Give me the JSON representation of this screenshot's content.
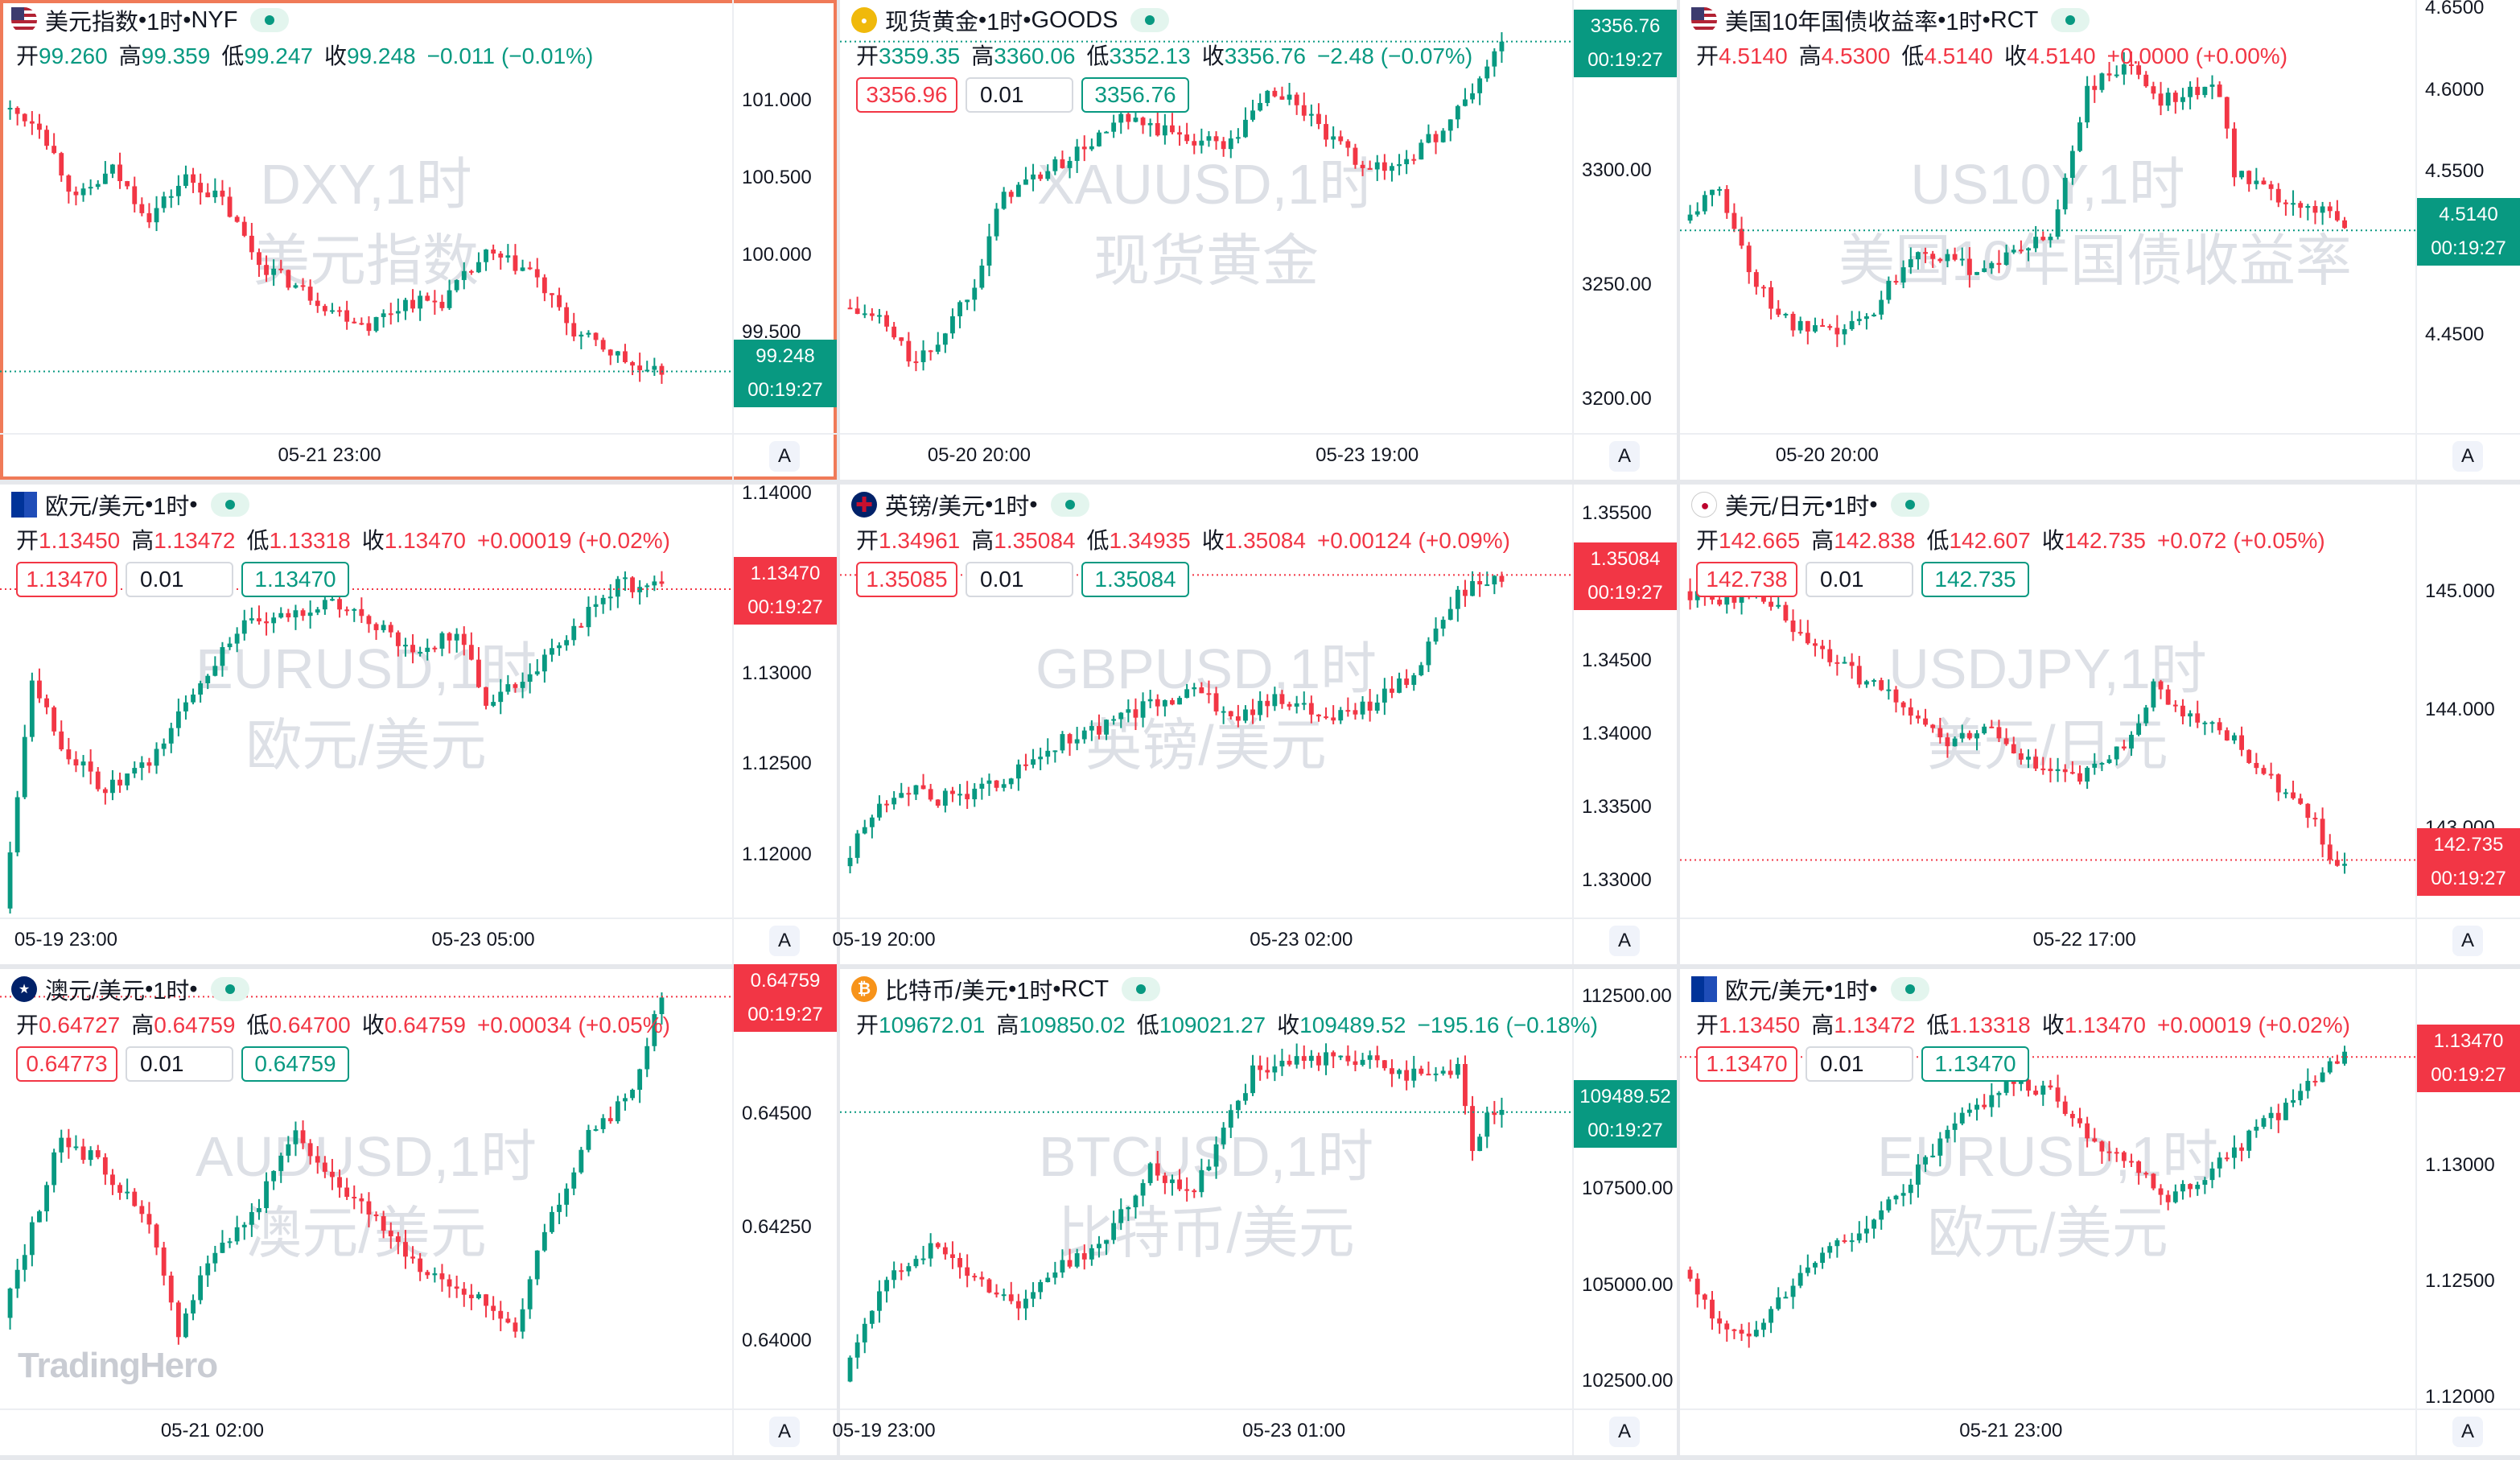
{
  "colors": {
    "up": "#089981",
    "down": "#f23645",
    "accent": "#f07a58"
  },
  "branding": {
    "text": "TradingHero"
  },
  "charts": [
    {
      "name": "美元指数",
      "tf": "1时",
      "source": "NYF",
      "flag": "us",
      "active": true,
      "o": "99.260",
      "h": "99.359",
      "l": "99.247",
      "c": "99.248",
      "chg": "−0.011",
      "pct": "(−0.01%)",
      "dir": "down",
      "trade": null,
      "wm1": "DXY,1时",
      "wm2": "美元指数",
      "yticks": [
        {
          "l": "101.000",
          "v": 101
        },
        {
          "l": "100.500",
          "v": 100.5
        },
        {
          "l": "100.000",
          "v": 100
        },
        {
          "l": "99.500",
          "v": 99.5
        }
      ],
      "ylim": [
        98.85,
        101.65
      ],
      "price_label": "99.248",
      "price": 99.248,
      "countdown": "00:19:27",
      "price_color": "#089981",
      "xticks": [
        {
          "l": "05-21 23:00",
          "f": 0.45
        }
      ],
      "axis_btn": "A",
      "path": [
        [
          0,
          100.95
        ],
        [
          0.05,
          100.85
        ],
        [
          0.1,
          100.35
        ],
        [
          0.15,
          100.55
        ],
        [
          0.2,
          100.25
        ],
        [
          0.25,
          100.5
        ],
        [
          0.3,
          100.35
        ],
        [
          0.35,
          99.95
        ],
        [
          0.4,
          99.8
        ],
        [
          0.45,
          99.65
        ],
        [
          0.5,
          99.55
        ],
        [
          0.55,
          99.7
        ],
        [
          0.6,
          99.7
        ],
        [
          0.66,
          100.0
        ],
        [
          0.72,
          99.9
        ],
        [
          0.78,
          99.5
        ],
        [
          0.84,
          99.35
        ],
        [
          0.88,
          99.22
        ],
        [
          0.9,
          99.25
        ]
      ]
    },
    {
      "name": "现货黄金",
      "tf": "1时",
      "source": "GOODS",
      "flag": "gold",
      "active": false,
      "o": "3359.35",
      "h": "3360.06",
      "l": "3352.13",
      "c": "3356.76",
      "chg": "−2.48",
      "pct": "(−0.07%)",
      "dir": "down",
      "trade": {
        "sell": "3356.96",
        "qty": "0.01",
        "buy": "3356.76"
      },
      "wm1": "XAUUSD,1时",
      "wm2": "现货黄金",
      "yticks": [
        {
          "l": "3300.00",
          "v": 3300
        },
        {
          "l": "3250.00",
          "v": 3250
        },
        {
          "l": "3200.00",
          "v": 3200
        }
      ],
      "ylim": [
        3185,
        3375
      ],
      "price_label": "3356.76",
      "price": 3356.76,
      "countdown": "00:19:27",
      "price_color": "#089981",
      "xticks": [
        {
          "l": "05-20 20:00",
          "f": 0.19
        },
        {
          "l": "05-23 19:00",
          "f": 0.72
        }
      ],
      "axis_btn": "A",
      "path": [
        [
          0,
          3240
        ],
        [
          0.05,
          3235
        ],
        [
          0.1,
          3215
        ],
        [
          0.13,
          3225
        ],
        [
          0.18,
          3252
        ],
        [
          0.22,
          3290
        ],
        [
          0.28,
          3300
        ],
        [
          0.33,
          3310
        ],
        [
          0.38,
          3322
        ],
        [
          0.43,
          3318
        ],
        [
          0.48,
          3314
        ],
        [
          0.53,
          3312
        ],
        [
          0.58,
          3335
        ],
        [
          0.62,
          3330
        ],
        [
          0.66,
          3315
        ],
        [
          0.7,
          3305
        ],
        [
          0.74,
          3300
        ],
        [
          0.78,
          3308
        ],
        [
          0.82,
          3318
        ],
        [
          0.86,
          3335
        ],
        [
          0.9,
          3357
        ]
      ]
    },
    {
      "name": "美国10年国债收益率",
      "tf": "1时",
      "source": "RCT",
      "flag": "us",
      "active": false,
      "o": "4.5140",
      "h": "4.5300",
      "l": "4.5140",
      "c": "4.5140",
      "chg": "+0.0000",
      "pct": "(+0.00%)",
      "dir": "up",
      "trade": null,
      "wm1": "US10Y,1时",
      "wm2": "美国10年国债收益率",
      "yticks": [
        {
          "l": "4.6500",
          "v": 4.65
        },
        {
          "l": "4.6000",
          "v": 4.6
        },
        {
          "l": "4.5500",
          "v": 4.55
        },
        {
          "l": "4.4500",
          "v": 4.45
        }
      ],
      "ylim": [
        4.39,
        4.655
      ],
      "price_label": "4.5140",
      "price": 4.514,
      "countdown": "00:19:27",
      "price_color": "#089981",
      "xticks": [
        {
          "l": "05-20 20:00",
          "f": 0.2
        }
      ],
      "axis_btn": "A",
      "path": [
        [
          0,
          4.52
        ],
        [
          0.05,
          4.54
        ],
        [
          0.1,
          4.48
        ],
        [
          0.15,
          4.455
        ],
        [
          0.2,
          4.45
        ],
        [
          0.25,
          4.46
        ],
        [
          0.28,
          4.48
        ],
        [
          0.32,
          4.505
        ],
        [
          0.36,
          4.495
        ],
        [
          0.4,
          4.49
        ],
        [
          0.45,
          4.5
        ],
        [
          0.5,
          4.51
        ],
        [
          0.55,
          4.6
        ],
        [
          0.6,
          4.615
        ],
        [
          0.65,
          4.595
        ],
        [
          0.7,
          4.6
        ],
        [
          0.73,
          4.6
        ],
        [
          0.75,
          4.55
        ],
        [
          0.8,
          4.535
        ],
        [
          0.84,
          4.525
        ],
        [
          0.88,
          4.53
        ],
        [
          0.9,
          4.514
        ]
      ]
    },
    {
      "name": "欧元/美元",
      "tf": "1时",
      "source": "",
      "flag": "eu",
      "active": false,
      "o": "1.13450",
      "h": "1.13472",
      "l": "1.13318",
      "c": "1.13470",
      "chg": "+0.00019",
      "pct": "(+0.02%)",
      "dir": "up",
      "trade": {
        "sell": "1.13470",
        "qty": "0.01",
        "buy": "1.13470"
      },
      "wm1": "EURUSD,1时",
      "wm2": "欧元/美元",
      "yticks": [
        {
          "l": "1.14000",
          "v": 1.14
        },
        {
          "l": "1.13000",
          "v": 1.13
        },
        {
          "l": "1.12500",
          "v": 1.125
        },
        {
          "l": "1.12000",
          "v": 1.12
        }
      ],
      "ylim": [
        1.1165,
        1.1405
      ],
      "price_label": "1.13470",
      "price": 1.1347,
      "countdown": "00:19:27",
      "price_color": "#f23645",
      "xticks": [
        {
          "l": "05-19 23:00",
          "f": 0.09
        },
        {
          "l": "05-23 05:00",
          "f": 0.66
        }
      ],
      "axis_btn": "A",
      "path": [
        [
          0,
          1.117
        ],
        [
          0.04,
          1.13
        ],
        [
          0.08,
          1.126
        ],
        [
          0.14,
          1.1235
        ],
        [
          0.2,
          1.125
        ],
        [
          0.26,
          1.129
        ],
        [
          0.32,
          1.1325
        ],
        [
          0.38,
          1.133
        ],
        [
          0.44,
          1.134
        ],
        [
          0.5,
          1.133
        ],
        [
          0.56,
          1.131
        ],
        [
          0.62,
          1.1325
        ],
        [
          0.66,
          1.1285
        ],
        [
          0.72,
          1.13
        ],
        [
          0.78,
          1.1325
        ],
        [
          0.84,
          1.135
        ],
        [
          0.9,
          1.1347
        ]
      ]
    },
    {
      "name": "英镑/美元",
      "tf": "1时",
      "source": "",
      "flag": "uk",
      "active": false,
      "o": "1.34961",
      "h": "1.35084",
      "l": "1.34935",
      "c": "1.35084",
      "chg": "+0.00124",
      "pct": "(+0.09%)",
      "dir": "up",
      "trade": {
        "sell": "1.35085",
        "qty": "0.01",
        "buy": "1.35084"
      },
      "wm1": "GBPUSD,1时",
      "wm2": "英镑/美元",
      "yticks": [
        {
          "l": "1.35500",
          "v": 1.355
        },
        {
          "l": "1.34500",
          "v": 1.345
        },
        {
          "l": "1.34000",
          "v": 1.34
        },
        {
          "l": "1.33500",
          "v": 1.335
        },
        {
          "l": "1.33000",
          "v": 1.33
        }
      ],
      "ylim": [
        1.3275,
        1.357
      ],
      "price_label": "1.35084",
      "price": 1.35084,
      "countdown": "00:19:27",
      "price_color": "#f23645",
      "xticks": [
        {
          "l": "05-19 20:00",
          "f": 0.06
        },
        {
          "l": "05-23 02:00",
          "f": 0.63
        }
      ],
      "axis_btn": "A",
      "path": [
        [
          0,
          1.331
        ],
        [
          0.04,
          1.3345
        ],
        [
          0.08,
          1.3365
        ],
        [
          0.12,
          1.3355
        ],
        [
          0.18,
          1.336
        ],
        [
          0.24,
          1.3375
        ],
        [
          0.3,
          1.3395
        ],
        [
          0.36,
          1.3405
        ],
        [
          0.42,
          1.342
        ],
        [
          0.48,
          1.343
        ],
        [
          0.54,
          1.341
        ],
        [
          0.6,
          1.3425
        ],
        [
          0.66,
          1.341
        ],
        [
          0.72,
          1.342
        ],
        [
          0.78,
          1.344
        ],
        [
          0.84,
          1.3495
        ],
        [
          0.88,
          1.3505
        ],
        [
          0.9,
          1.35084
        ]
      ]
    },
    {
      "name": "美元/日元",
      "tf": "1时",
      "source": "",
      "flag": "jp",
      "active": false,
      "o": "142.665",
      "h": "142.838",
      "l": "142.607",
      "c": "142.735",
      "chg": "+0.072",
      "pct": "(+0.05%)",
      "dir": "up",
      "trade": {
        "sell": "142.738",
        "qty": "0.01",
        "buy": "142.735"
      },
      "wm1": "USDJPY,1时",
      "wm2": "美元/日元",
      "yticks": [
        {
          "l": "145.000",
          "v": 145
        },
        {
          "l": "144.000",
          "v": 144
        },
        {
          "l": "143.000",
          "v": 143
        }
      ],
      "ylim": [
        142.25,
        145.9
      ],
      "price_label": "142.735",
      "price": 142.735,
      "countdown": "00:19:27",
      "price_color": "#f23645",
      "xticks": [
        {
          "l": "05-22 17:00",
          "f": 0.55
        }
      ],
      "axis_btn": "A",
      "path": [
        [
          0,
          145.0
        ],
        [
          0.05,
          144.9
        ],
        [
          0.1,
          145.05
        ],
        [
          0.16,
          144.6
        ],
        [
          0.22,
          144.35
        ],
        [
          0.3,
          144.05
        ],
        [
          0.36,
          143.7
        ],
        [
          0.42,
          143.85
        ],
        [
          0.48,
          143.5
        ],
        [
          0.54,
          143.4
        ],
        [
          0.6,
          143.7
        ],
        [
          0.64,
          144.2
        ],
        [
          0.68,
          144.0
        ],
        [
          0.74,
          143.8
        ],
        [
          0.8,
          143.4
        ],
        [
          0.86,
          143.05
        ],
        [
          0.88,
          142.7
        ],
        [
          0.9,
          142.735
        ]
      ]
    },
    {
      "name": "澳元/美元",
      "tf": "1时",
      "source": "",
      "flag": "au",
      "active": false,
      "o": "0.64727",
      "h": "0.64759",
      "l": "0.64700",
      "c": "0.64759",
      "chg": "+0.00034",
      "pct": "(+0.05%)",
      "dir": "up",
      "trade": {
        "sell": "0.64773",
        "qty": "0.01",
        "buy": "0.64759"
      },
      "wm1": "AUDUSD,1时",
      "wm2": "澳元/美元",
      "yticks": [
        {
          "l": "0.64500",
          "v": 0.645
        },
        {
          "l": "0.64250",
          "v": 0.6425
        },
        {
          "l": "0.64000",
          "v": 0.64
        }
      ],
      "ylim": [
        0.6385,
        0.6482
      ],
      "price_label": "0.64759",
      "price": 0.64759,
      "countdown": "00:19:27",
      "price_color": "#f23645",
      "xticks": [
        {
          "l": "05-21 02:00",
          "f": 0.29
        }
      ],
      "axis_btn": "A",
      "path": [
        [
          0,
          0.6405
        ],
        [
          0.04,
          0.6425
        ],
        [
          0.08,
          0.6445
        ],
        [
          0.14,
          0.6438
        ],
        [
          0.2,
          0.6425
        ],
        [
          0.24,
          0.6402
        ],
        [
          0.28,
          0.6418
        ],
        [
          0.34,
          0.6428
        ],
        [
          0.4,
          0.6445
        ],
        [
          0.46,
          0.6435
        ],
        [
          0.52,
          0.6425
        ],
        [
          0.58,
          0.6415
        ],
        [
          0.64,
          0.641
        ],
        [
          0.7,
          0.6403
        ],
        [
          0.74,
          0.6425
        ],
        [
          0.8,
          0.6445
        ],
        [
          0.86,
          0.6455
        ],
        [
          0.9,
          0.64759
        ]
      ]
    },
    {
      "name": "比特币/美元",
      "tf": "1时",
      "source": "RCT",
      "flag": "btc",
      "active": false,
      "o": "109672.01",
      "h": "109850.02",
      "l": "109021.27",
      "c": "109489.52",
      "chg": "−195.16",
      "pct": "(−0.18%)",
      "dir": "down",
      "trade": null,
      "wm1": "BTCUSD,1时",
      "wm2": "比特币/美元",
      "yticks": [
        {
          "l": "112500.00",
          "v": 112500
        },
        {
          "l": "107500.00",
          "v": 107500
        },
        {
          "l": "105000.00",
          "v": 105000
        },
        {
          "l": "102500.00",
          "v": 102500
        }
      ],
      "ylim": [
        101800,
        113200
      ],
      "price_label": "109489.52",
      "price": 109489.52,
      "countdown": "00:19:27",
      "price_color": "#089981",
      "xticks": [
        {
          "l": "05-19 23:00",
          "f": 0.06
        },
        {
          "l": "05-23 01:00",
          "f": 0.62
        }
      ],
      "axis_btn": "A",
      "path": [
        [
          0,
          102500
        ],
        [
          0.04,
          104500
        ],
        [
          0.08,
          105500
        ],
        [
          0.12,
          106000
        ],
        [
          0.18,
          105200
        ],
        [
          0.24,
          104500
        ],
        [
          0.3,
          105500
        ],
        [
          0.36,
          106200
        ],
        [
          0.42,
          108000
        ],
        [
          0.48,
          107500
        ],
        [
          0.52,
          109000
        ],
        [
          0.56,
          110500
        ],
        [
          0.62,
          110800
        ],
        [
          0.68,
          110900
        ],
        [
          0.74,
          110700
        ],
        [
          0.8,
          110300
        ],
        [
          0.84,
          110600
        ],
        [
          0.86,
          108500
        ],
        [
          0.88,
          109300
        ],
        [
          0.9,
          109489
        ]
      ]
    },
    {
      "name": "欧元/美元",
      "tf": "1时",
      "source": "",
      "flag": "eu",
      "active": false,
      "o": "1.13450",
      "h": "1.13472",
      "l": "1.13318",
      "c": "1.13470",
      "chg": "+0.00019",
      "pct": "(+0.02%)",
      "dir": "up",
      "trade": {
        "sell": "1.13470",
        "qty": "0.01",
        "buy": "1.13470"
      },
      "wm1": "EURUSD,1时",
      "wm2": "欧元/美元",
      "yticks": [
        {
          "l": "1.13000",
          "v": 1.13
        },
        {
          "l": "1.12500",
          "v": 1.125
        },
        {
          "l": "1.12000",
          "v": 1.12
        }
      ],
      "ylim": [
        1.1195,
        1.1385
      ],
      "price_label": "1.13470",
      "price": 1.1347,
      "countdown": "00:19:27",
      "price_color": "#f23645",
      "xticks": [
        {
          "l": "05-21 23:00",
          "f": 0.45
        }
      ],
      "axis_btn": "A",
      "path": [
        [
          0,
          1.1255
        ],
        [
          0.04,
          1.1235
        ],
        [
          0.08,
          1.1225
        ],
        [
          0.14,
          1.1245
        ],
        [
          0.2,
          1.1265
        ],
        [
          0.26,
          1.1275
        ],
        [
          0.32,
          1.1298
        ],
        [
          0.38,
          1.132
        ],
        [
          0.44,
          1.1335
        ],
        [
          0.5,
          1.1332
        ],
        [
          0.56,
          1.131
        ],
        [
          0.6,
          1.1305
        ],
        [
          0.66,
          1.1285
        ],
        [
          0.72,
          1.1298
        ],
        [
          0.78,
          1.1315
        ],
        [
          0.84,
          1.133
        ],
        [
          0.88,
          1.1345
        ],
        [
          0.9,
          1.1347
        ]
      ]
    }
  ]
}
